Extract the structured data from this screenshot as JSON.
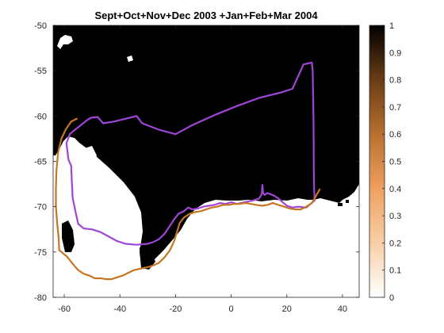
{
  "chart_data": {
    "type": "heatmap",
    "title": "Sept+Oct+Nov+Dec 2003 +Jan+Feb+Mar 2004",
    "xlabel": "",
    "ylabel": "",
    "xlim": [
      -64,
      46
    ],
    "ylim": [
      -80,
      -50
    ],
    "x_ticks": [
      -60,
      -40,
      -20,
      0,
      20,
      40
    ],
    "y_ticks": [
      -50,
      -55,
      -60,
      -65,
      -70,
      -75,
      -80
    ],
    "grid": false,
    "colorbar": {
      "range": [
        0,
        1
      ],
      "ticks": [
        0,
        0.1,
        0.2,
        0.3,
        0.4,
        0.5,
        0.6,
        0.7,
        0.8,
        0.9,
        1
      ],
      "colors": [
        "#ffffff",
        "#f7cfa6",
        "#f0a060",
        "#b8702f",
        "#6a3d15",
        "#000000"
      ]
    },
    "colors": {
      "land_or_low": "#ffffff",
      "field_high": "#000000",
      "orange_track": "#c6761f",
      "purple_track": "#a045d6"
    },
    "series": [
      {
        "color": "#a045d6",
        "points": [
          [
            -50.5,
            -60.2
          ],
          [
            -48,
            -60.1
          ],
          [
            -46,
            -60.8
          ],
          [
            -42,
            -60.6
          ],
          [
            -38,
            -60.3
          ],
          [
            -34,
            -60.0
          ],
          [
            -32,
            -60.8
          ],
          [
            -26,
            -61.5
          ],
          [
            -20,
            -62.0
          ],
          [
            -14,
            -61.0
          ],
          [
            -6,
            -59.9
          ],
          [
            2,
            -58.9
          ],
          [
            10,
            -58.0
          ],
          [
            18,
            -57.4
          ],
          [
            22,
            -57.0
          ],
          [
            26,
            -54.3
          ],
          [
            29,
            -54.1
          ],
          [
            29.3,
            -55.0
          ],
          [
            29.6,
            -61.0
          ],
          [
            29.7,
            -66.0
          ],
          [
            29.8,
            -68.0
          ],
          [
            30,
            -69.3
          ],
          [
            27,
            -70.1
          ],
          [
            24,
            -70.0
          ],
          [
            22,
            -70.1
          ],
          [
            20,
            -69.9
          ],
          [
            18.5,
            -69.5
          ],
          [
            17,
            -69.1
          ],
          [
            15.5,
            -68.8
          ],
          [
            14,
            -68.6
          ],
          [
            13,
            -68.5
          ],
          [
            12,
            -68.7
          ],
          [
            11.5,
            -68.5
          ],
          [
            11.2,
            -67.6
          ],
          [
            11,
            -68.6
          ],
          [
            10,
            -69.1
          ],
          [
            8,
            -69.3
          ],
          [
            5,
            -69.5
          ],
          [
            2,
            -69.7
          ],
          [
            0,
            -69.5
          ],
          [
            -2,
            -69.7
          ],
          [
            -4,
            -69.6
          ],
          [
            -6,
            -69.8
          ],
          [
            -8,
            -69.9
          ],
          [
            -10,
            -70.0
          ],
          [
            -12,
            -70.2
          ],
          [
            -14,
            -70.3
          ],
          [
            -15.5,
            -70.1
          ],
          [
            -17,
            -70.5
          ],
          [
            -19,
            -70.8
          ],
          [
            -20.5,
            -71.4
          ],
          [
            -22,
            -72.1
          ],
          [
            -24,
            -73.0
          ],
          [
            -26,
            -73.6
          ],
          [
            -28,
            -73.9
          ],
          [
            -30,
            -74.1
          ],
          [
            -34,
            -74.2
          ],
          [
            -38,
            -74.1
          ],
          [
            -41,
            -73.8
          ],
          [
            -44,
            -73.3
          ],
          [
            -47,
            -72.8
          ],
          [
            -50,
            -72.5
          ],
          [
            -53,
            -72.4
          ],
          [
            -55,
            -71.9
          ],
          [
            -56,
            -70.5
          ],
          [
            -57,
            -69.0
          ],
          [
            -57.3,
            -67.0
          ],
          [
            -57.5,
            -65.5
          ],
          [
            -58.5,
            -64.8
          ],
          [
            -59.2,
            -63.0
          ],
          [
            -58,
            -62.0
          ],
          [
            -56.5,
            -61.6
          ],
          [
            -54,
            -61.0
          ],
          [
            -52,
            -60.5
          ],
          [
            -50.5,
            -60.2
          ]
        ]
      },
      {
        "color": "#c6761f",
        "points": [
          [
            -55.5,
            -60.3
          ],
          [
            -57.5,
            -60.6
          ],
          [
            -59.5,
            -61.5
          ],
          [
            -61,
            -62.5
          ],
          [
            -62.2,
            -64.0
          ],
          [
            -62.8,
            -66.0
          ],
          [
            -63.0,
            -68.0
          ],
          [
            -63.0,
            -70.0
          ],
          [
            -62.5,
            -72.0
          ],
          [
            -62.0,
            -73.5
          ],
          [
            -61.8,
            -74.8
          ],
          [
            -61,
            -75.0
          ],
          [
            -59,
            -75.5
          ],
          [
            -57,
            -76.3
          ],
          [
            -55,
            -77.0
          ],
          [
            -53,
            -77.4
          ],
          [
            -51,
            -77.6
          ],
          [
            -49,
            -77.9
          ],
          [
            -47,
            -77.9
          ],
          [
            -45,
            -78.0
          ],
          [
            -43,
            -78.0
          ],
          [
            -41,
            -77.8
          ],
          [
            -39,
            -77.6
          ],
          [
            -37,
            -77.3
          ],
          [
            -35,
            -77.0
          ],
          [
            -32,
            -76.8
          ],
          [
            -29,
            -76.6
          ],
          [
            -26,
            -76.2
          ],
          [
            -24,
            -75.6
          ],
          [
            -22,
            -74.8
          ],
          [
            -20.5,
            -73.8
          ],
          [
            -19.5,
            -72.8
          ],
          [
            -18.5,
            -71.8
          ],
          [
            -17,
            -71.2
          ],
          [
            -15,
            -70.8
          ],
          [
            -13,
            -70.6
          ],
          [
            -11,
            -70.5
          ],
          [
            -9,
            -70.3
          ],
          [
            -7,
            -70.1
          ],
          [
            -5,
            -70.0
          ],
          [
            -3,
            -69.8
          ],
          [
            -1,
            -69.8
          ],
          [
            1,
            -69.7
          ],
          [
            3,
            -69.7
          ],
          [
            5,
            -69.6
          ],
          [
            7,
            -69.7
          ],
          [
            9,
            -69.8
          ],
          [
            11,
            -69.9
          ],
          [
            13,
            -69.8
          ],
          [
            15,
            -69.6
          ],
          [
            17,
            -69.8
          ],
          [
            19,
            -70.0
          ],
          [
            21,
            -70.2
          ],
          [
            23,
            -70.3
          ],
          [
            25,
            -70.3
          ],
          [
            27,
            -70.0
          ],
          [
            29,
            -69.6
          ],
          [
            30.5,
            -68.8
          ],
          [
            31.8,
            -68.1
          ]
        ]
      }
    ]
  }
}
